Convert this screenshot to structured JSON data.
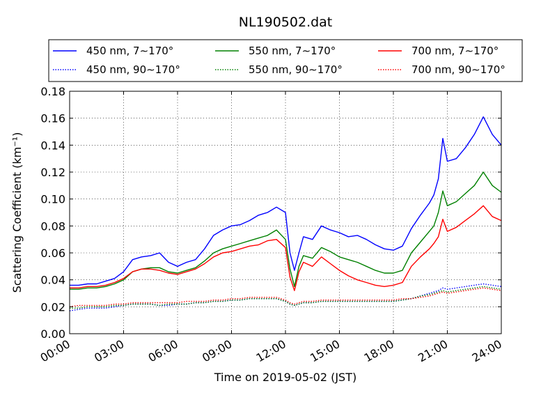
{
  "chart_data": {
    "type": "line",
    "title": "NL190502.dat",
    "xlabel": "Time on 2019-05-02 (JST)",
    "ylabel": "Scattering Coefficient (km⁻¹)",
    "xlim": [
      "00:00",
      "24:00"
    ],
    "ylim": [
      0,
      0.18
    ],
    "x_ticks": [
      "00:00",
      "03:00",
      "06:00",
      "09:00",
      "12:00",
      "15:00",
      "18:00",
      "21:00",
      "24:00"
    ],
    "y_ticks": [
      "0.00",
      "0.02",
      "0.04",
      "0.06",
      "0.08",
      "0.10",
      "0.12",
      "0.14",
      "0.16",
      "0.18"
    ],
    "grid": true,
    "legend_position": "top-center",
    "x_hours": [
      0,
      0.5,
      1,
      1.5,
      2,
      2.5,
      3,
      3.5,
      4,
      4.5,
      5,
      5.5,
      6,
      6.5,
      7,
      7.5,
      8,
      8.5,
      9,
      9.5,
      10,
      10.5,
      11,
      11.5,
      12,
      12.25,
      12.5,
      12.75,
      13,
      13.5,
      14,
      14.5,
      15,
      15.5,
      16,
      16.5,
      17,
      17.5,
      18,
      18.5,
      19,
      19.5,
      20,
      20.25,
      20.5,
      20.75,
      21,
      21.5,
      22,
      22.5,
      23,
      23.5,
      24
    ],
    "series": [
      {
        "name": "450 nm, 7∼170°",
        "color": "#0000ff",
        "dash": "solid",
        "values": [
          0.036,
          0.036,
          0.037,
          0.037,
          0.039,
          0.041,
          0.046,
          0.055,
          0.057,
          0.058,
          0.06,
          0.053,
          0.05,
          0.053,
          0.055,
          0.063,
          0.073,
          0.077,
          0.08,
          0.081,
          0.084,
          0.088,
          0.09,
          0.094,
          0.09,
          0.06,
          0.047,
          0.06,
          0.072,
          0.07,
          0.08,
          0.077,
          0.075,
          0.072,
          0.073,
          0.07,
          0.066,
          0.063,
          0.062,
          0.065,
          0.078,
          0.088,
          0.097,
          0.103,
          0.115,
          0.145,
          0.128,
          0.13,
          0.138,
          0.148,
          0.161,
          0.148,
          0.14
        ]
      },
      {
        "name": "450 nm, 90∼170°",
        "color": "#0000ff",
        "dash": "dotted",
        "values": [
          0.017,
          0.018,
          0.019,
          0.019,
          0.019,
          0.02,
          0.021,
          0.022,
          0.022,
          0.022,
          0.021,
          0.021,
          0.022,
          0.022,
          0.023,
          0.023,
          0.024,
          0.024,
          0.025,
          0.025,
          0.026,
          0.026,
          0.026,
          0.026,
          0.024,
          0.022,
          0.021,
          0.022,
          0.023,
          0.023,
          0.024,
          0.024,
          0.024,
          0.024,
          0.024,
          0.024,
          0.024,
          0.024,
          0.024,
          0.025,
          0.026,
          0.028,
          0.03,
          0.031,
          0.032,
          0.034,
          0.033,
          0.034,
          0.035,
          0.036,
          0.037,
          0.036,
          0.035
        ]
      },
      {
        "name": "550 nm, 7∼170°",
        "color": "#008000",
        "dash": "solid",
        "values": [
          0.033,
          0.033,
          0.034,
          0.034,
          0.035,
          0.037,
          0.04,
          0.046,
          0.048,
          0.049,
          0.049,
          0.046,
          0.045,
          0.047,
          0.049,
          0.054,
          0.06,
          0.063,
          0.065,
          0.067,
          0.069,
          0.071,
          0.073,
          0.077,
          0.07,
          0.048,
          0.035,
          0.05,
          0.058,
          0.056,
          0.064,
          0.061,
          0.057,
          0.055,
          0.053,
          0.05,
          0.047,
          0.045,
          0.045,
          0.047,
          0.06,
          0.068,
          0.076,
          0.08,
          0.09,
          0.106,
          0.095,
          0.098,
          0.104,
          0.11,
          0.12,
          0.11,
          0.105
        ]
      },
      {
        "name": "550 nm, 90∼170°",
        "color": "#008000",
        "dash": "dotted",
        "values": [
          0.019,
          0.019,
          0.02,
          0.02,
          0.02,
          0.021,
          0.021,
          0.022,
          0.022,
          0.022,
          0.021,
          0.022,
          0.022,
          0.022,
          0.023,
          0.023,
          0.024,
          0.024,
          0.025,
          0.025,
          0.026,
          0.026,
          0.026,
          0.026,
          0.024,
          0.022,
          0.021,
          0.022,
          0.023,
          0.023,
          0.024,
          0.024,
          0.024,
          0.024,
          0.024,
          0.024,
          0.024,
          0.024,
          0.024,
          0.025,
          0.026,
          0.028,
          0.029,
          0.03,
          0.031,
          0.032,
          0.031,
          0.032,
          0.033,
          0.034,
          0.035,
          0.034,
          0.033
        ]
      },
      {
        "name": "700 nm, 7∼170°",
        "color": "#ff0000",
        "dash": "solid",
        "values": [
          0.034,
          0.034,
          0.035,
          0.035,
          0.036,
          0.038,
          0.041,
          0.046,
          0.048,
          0.048,
          0.047,
          0.045,
          0.044,
          0.046,
          0.048,
          0.052,
          0.057,
          0.06,
          0.061,
          0.063,
          0.065,
          0.066,
          0.069,
          0.07,
          0.064,
          0.042,
          0.032,
          0.046,
          0.053,
          0.05,
          0.057,
          0.052,
          0.047,
          0.043,
          0.04,
          0.038,
          0.036,
          0.035,
          0.036,
          0.038,
          0.05,
          0.057,
          0.063,
          0.067,
          0.072,
          0.085,
          0.076,
          0.079,
          0.084,
          0.089,
          0.095,
          0.087,
          0.084
        ]
      },
      {
        "name": "700 nm, 90∼170°",
        "color": "#ff0000",
        "dash": "dotted",
        "values": [
          0.02,
          0.021,
          0.021,
          0.021,
          0.021,
          0.022,
          0.022,
          0.023,
          0.023,
          0.023,
          0.023,
          0.023,
          0.023,
          0.024,
          0.024,
          0.024,
          0.025,
          0.025,
          0.026,
          0.026,
          0.027,
          0.027,
          0.027,
          0.027,
          0.025,
          0.023,
          0.022,
          0.023,
          0.024,
          0.024,
          0.025,
          0.025,
          0.025,
          0.025,
          0.025,
          0.025,
          0.025,
          0.025,
          0.025,
          0.026,
          0.026,
          0.027,
          0.028,
          0.029,
          0.03,
          0.031,
          0.03,
          0.031,
          0.032,
          0.033,
          0.034,
          0.033,
          0.032
        ]
      }
    ]
  }
}
